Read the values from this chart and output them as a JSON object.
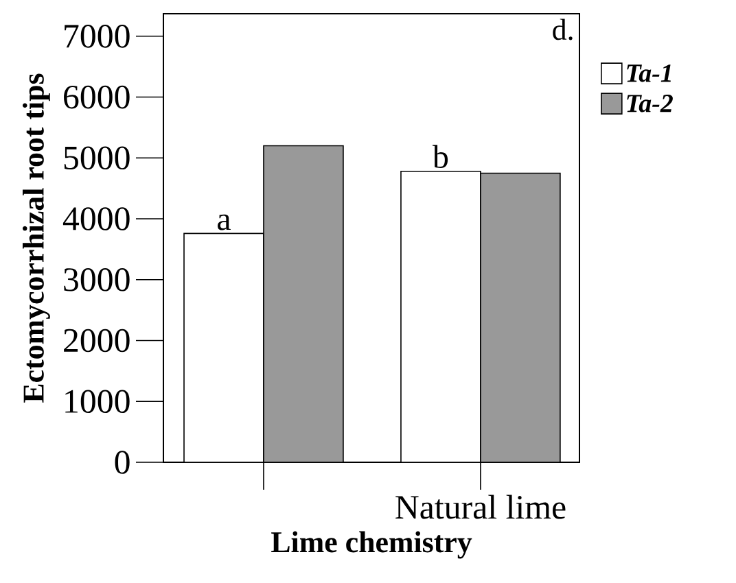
{
  "chart_data": {
    "type": "bar",
    "xlabel": "Lime chemistry",
    "ylabel": "Ectomycorrhizal root tips",
    "categories": [
      null,
      "Natural lime"
    ],
    "series": [
      {
        "name": "Ta-1",
        "color": "#ffffff",
        "values": [
          3760,
          4780
        ]
      },
      {
        "name": "Ta-2",
        "color": "#999999",
        "values": [
          5200,
          4750
        ]
      }
    ],
    "ylim": [
      0,
      7370
    ],
    "yticks": [
      0,
      1000,
      2000,
      3000,
      4000,
      5000,
      6000,
      7000
    ],
    "annotations": [
      "a",
      "b",
      "d."
    ],
    "grid": false,
    "legend": "top right"
  }
}
